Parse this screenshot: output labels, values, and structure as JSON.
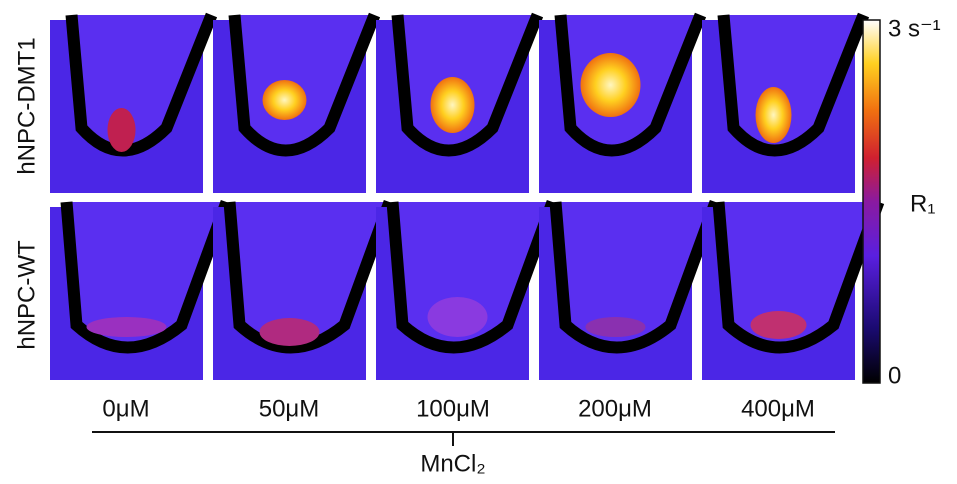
{
  "rows": [
    {
      "label": "hNPC-DMT1"
    },
    {
      "label": "hNPC-WT"
    }
  ],
  "columns": [
    {
      "label": "0μM"
    },
    {
      "label": "50μM"
    },
    {
      "label": "100μM"
    },
    {
      "label": "200μM"
    },
    {
      "label": "400μM"
    }
  ],
  "axis_label": "MnCl₂",
  "colorbar": {
    "label": "R₁",
    "max_label": "3 s⁻¹",
    "min_label": "0"
  }
}
